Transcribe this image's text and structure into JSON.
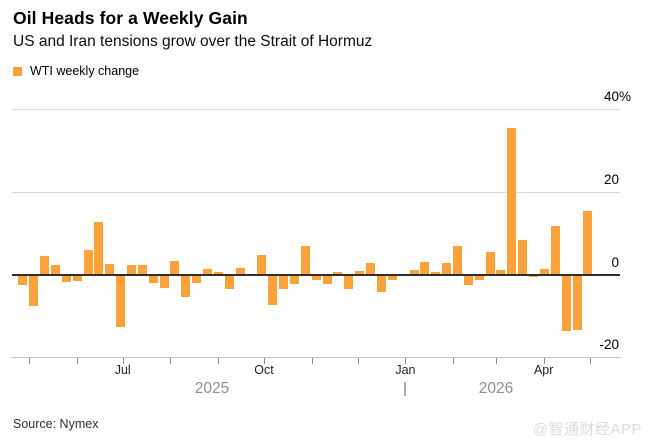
{
  "header": {
    "title": "Oil Heads for a Weekly Gain",
    "subtitle": "US and Iran tensions grow over the Strait of Hormuz"
  },
  "footer": {
    "source": "Source: Nymex",
    "watermark": "@智通财经APP"
  },
  "colors": {
    "bar": "#FBA23B",
    "gridline": "#d9d9d9",
    "zero_line": "#2e2e2e"
  },
  "chart_data": {
    "type": "bar",
    "title": "Oil Heads for a Weekly Gain",
    "subtitle": "US and Iran tensions grow over the Strait of Hormuz",
    "legend": [
      "WTI weekly change"
    ],
    "unit": "percent",
    "ylim": [
      -20,
      40
    ],
    "grid": "horizontal",
    "legend_position": "top-left",
    "y_axis": {
      "ticks": [
        {
          "value": 40,
          "label": "40%"
        },
        {
          "value": 20,
          "label": "20"
        },
        {
          "value": 0,
          "label": "0"
        },
        {
          "value": -20,
          "label": "-20"
        }
      ]
    },
    "x_axis": {
      "month_labels": [
        {
          "label": "Jul",
          "tick": 2
        },
        {
          "label": "Oct",
          "tick": 5
        },
        {
          "label": "Jan",
          "tick": 8
        },
        {
          "label": "Apr",
          "tick": 11
        }
      ],
      "years": [
        "2025",
        "2026"
      ]
    },
    "values": [
      -2.6,
      -7.7,
      4.6,
      2.4,
      -1.8,
      -1.5,
      6.0,
      12.7,
      2.5,
      -12.8,
      2.3,
      2.2,
      -2.1,
      -3.2,
      3.2,
      -5.5,
      -2.0,
      1.4,
      0.7,
      -3.5,
      1.5,
      0.0,
      4.8,
      -7.3,
      -3.5,
      -2.4,
      7.0,
      -1.2,
      -2.3,
      0.7,
      -3.5,
      0.8,
      2.7,
      -4.3,
      -1.4,
      -0.3,
      1.0,
      3.1,
      0.7,
      2.7,
      6.9,
      -2.5,
      -1.2,
      5.5,
      1.1,
      35.5,
      8.4,
      -0.7,
      1.3,
      11.8,
      -13.6,
      -13.4,
      15.3
    ]
  }
}
